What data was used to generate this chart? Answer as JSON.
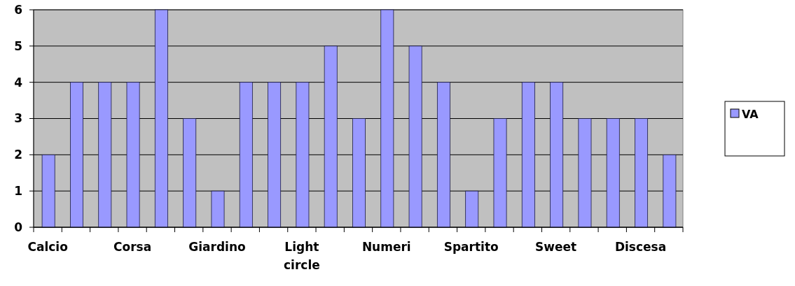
{
  "chart_data": {
    "type": "bar",
    "categories": [
      "Calcio",
      null,
      null,
      "Corsa",
      null,
      null,
      "Giardino",
      null,
      null,
      "Light circle",
      null,
      null,
      "Numeri",
      null,
      null,
      "Spartito",
      null,
      null,
      "Sweet",
      null,
      null,
      "Discesa",
      null
    ],
    "series": [
      {
        "name": "VA",
        "color": "#9999ff",
        "values": [
          2,
          4,
          4,
          4,
          6,
          3,
          1,
          4,
          4,
          4,
          5,
          3,
          6,
          5,
          4,
          1,
          3,
          4,
          4,
          3,
          3,
          3,
          2
        ]
      }
    ],
    "ylim": [
      0,
      6
    ],
    "yticks": [
      0,
      1,
      2,
      3,
      4,
      5,
      6
    ],
    "grid": "y",
    "legend": "right"
  }
}
